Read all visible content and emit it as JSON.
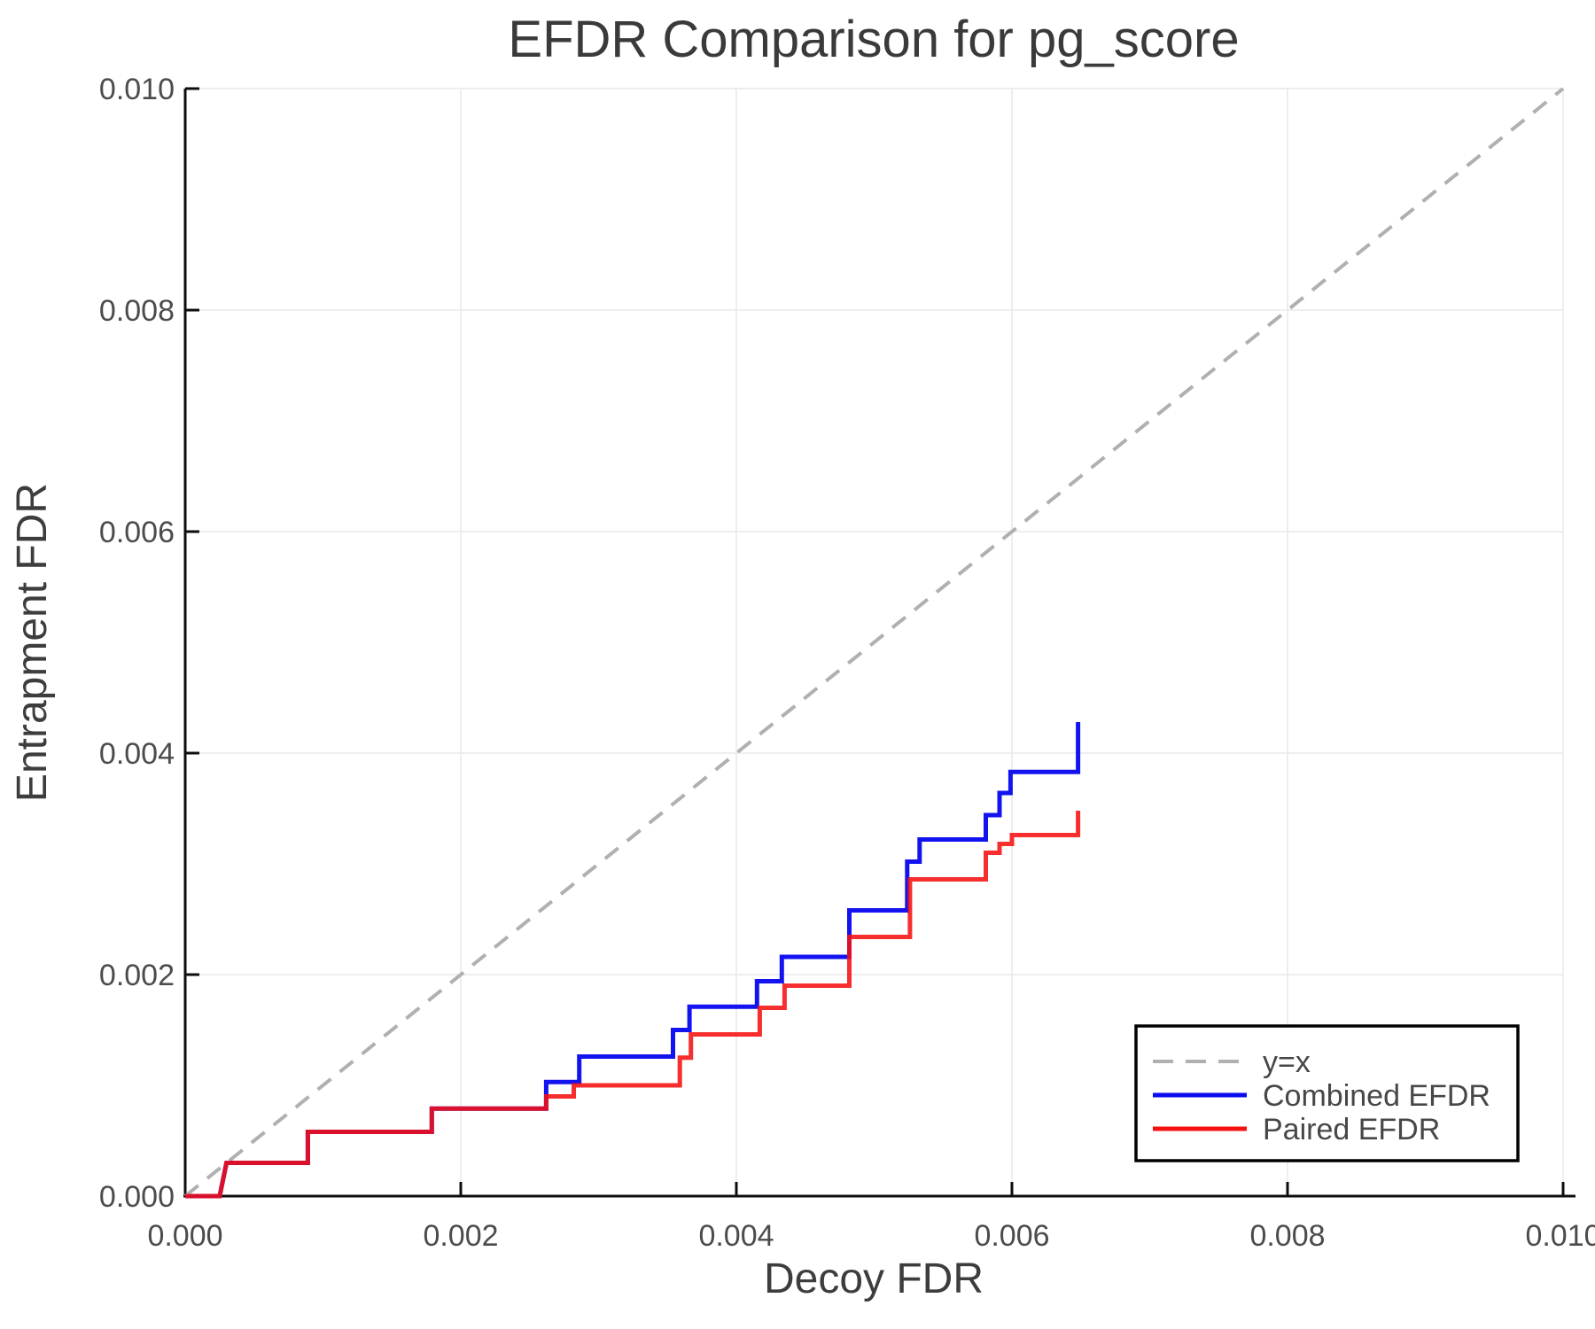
{
  "chart_data": {
    "type": "line",
    "title": "EFDR Comparison for pg_score",
    "xlabel": "Decoy FDR",
    "ylabel": "Entrapment FDR",
    "xlim": [
      0.0,
      0.01
    ],
    "ylim": [
      0.0,
      0.01
    ],
    "grid": true,
    "grid_color": "#e9e9e9",
    "spine_color": "#0d0d0d",
    "x_ticks": {
      "values": [
        0.0,
        0.002,
        0.004,
        0.006,
        0.008,
        0.01
      ],
      "labels": [
        "0.000",
        "0.002",
        "0.004",
        "0.006",
        "0.008",
        "0.010"
      ]
    },
    "y_ticks": {
      "values": [
        0.0,
        0.002,
        0.004,
        0.006,
        0.008,
        0.01
      ],
      "labels": [
        "0.000",
        "0.002",
        "0.004",
        "0.006",
        "0.008",
        "0.010"
      ]
    },
    "legend": {
      "position": "lower right"
    },
    "series": [
      {
        "name": "y=x",
        "style": "dashed",
        "color": "#b0b0b0",
        "width": 4,
        "opacity": 1.0,
        "dash": "19 13",
        "points": [
          [
            0.0,
            0.0
          ],
          [
            0.01,
            0.01
          ]
        ]
      },
      {
        "name": "Combined EFDR",
        "style": "step",
        "color": "#0b0bef",
        "width": 5,
        "opacity": 0.97,
        "dash": null,
        "points": [
          [
            0.0,
            0.0
          ],
          [
            0.00025,
            0.0
          ],
          [
            0.0003,
            0.0003
          ],
          [
            0.00089,
            0.0003
          ],
          [
            0.00089,
            0.00058
          ],
          [
            0.00179,
            0.00058
          ],
          [
            0.00179,
            0.00079
          ],
          [
            0.00262,
            0.00079
          ],
          [
            0.00262,
            0.00103
          ],
          [
            0.00286,
            0.00103
          ],
          [
            0.00286,
            0.00126
          ],
          [
            0.00354,
            0.00126
          ],
          [
            0.00354,
            0.0015
          ],
          [
            0.00366,
            0.0015
          ],
          [
            0.00366,
            0.00171
          ],
          [
            0.00415,
            0.00171
          ],
          [
            0.00415,
            0.00194
          ],
          [
            0.00433,
            0.00194
          ],
          [
            0.00433,
            0.00216
          ],
          [
            0.00482,
            0.00216
          ],
          [
            0.00482,
            0.00258
          ],
          [
            0.00524,
            0.00258
          ],
          [
            0.00524,
            0.00302
          ],
          [
            0.00533,
            0.00302
          ],
          [
            0.00533,
            0.00322
          ],
          [
            0.00581,
            0.00322
          ],
          [
            0.00581,
            0.00344
          ],
          [
            0.00591,
            0.00344
          ],
          [
            0.00591,
            0.00364
          ],
          [
            0.00599,
            0.00364
          ],
          [
            0.00599,
            0.00383
          ],
          [
            0.00648,
            0.00383
          ],
          [
            0.00648,
            0.00428
          ]
        ]
      },
      {
        "name": "Paired EFDR",
        "style": "step",
        "color": "#f61111",
        "width": 5,
        "opacity": 0.88,
        "dash": null,
        "points": [
          [
            0.0,
            0.0
          ],
          [
            0.00025,
            0.0
          ],
          [
            0.0003,
            0.0003
          ],
          [
            0.00089,
            0.0003
          ],
          [
            0.00089,
            0.00058
          ],
          [
            0.00179,
            0.00058
          ],
          [
            0.00179,
            0.00079
          ],
          [
            0.00262,
            0.00079
          ],
          [
            0.00262,
            0.0009
          ],
          [
            0.00282,
            0.0009
          ],
          [
            0.00282,
            0.001
          ],
          [
            0.00359,
            0.001
          ],
          [
            0.00359,
            0.00125
          ],
          [
            0.00367,
            0.00125
          ],
          [
            0.00367,
            0.00146
          ],
          [
            0.00417,
            0.00146
          ],
          [
            0.00417,
            0.0017
          ],
          [
            0.00435,
            0.0017
          ],
          [
            0.00435,
            0.0019
          ],
          [
            0.00482,
            0.0019
          ],
          [
            0.00482,
            0.00234
          ],
          [
            0.00526,
            0.00234
          ],
          [
            0.00526,
            0.00286
          ],
          [
            0.00581,
            0.00286
          ],
          [
            0.00581,
            0.0031
          ],
          [
            0.00591,
            0.0031
          ],
          [
            0.00591,
            0.00318
          ],
          [
            0.006,
            0.00318
          ],
          [
            0.006,
            0.00326
          ],
          [
            0.00648,
            0.00326
          ],
          [
            0.00648,
            0.00348
          ]
        ]
      }
    ]
  }
}
